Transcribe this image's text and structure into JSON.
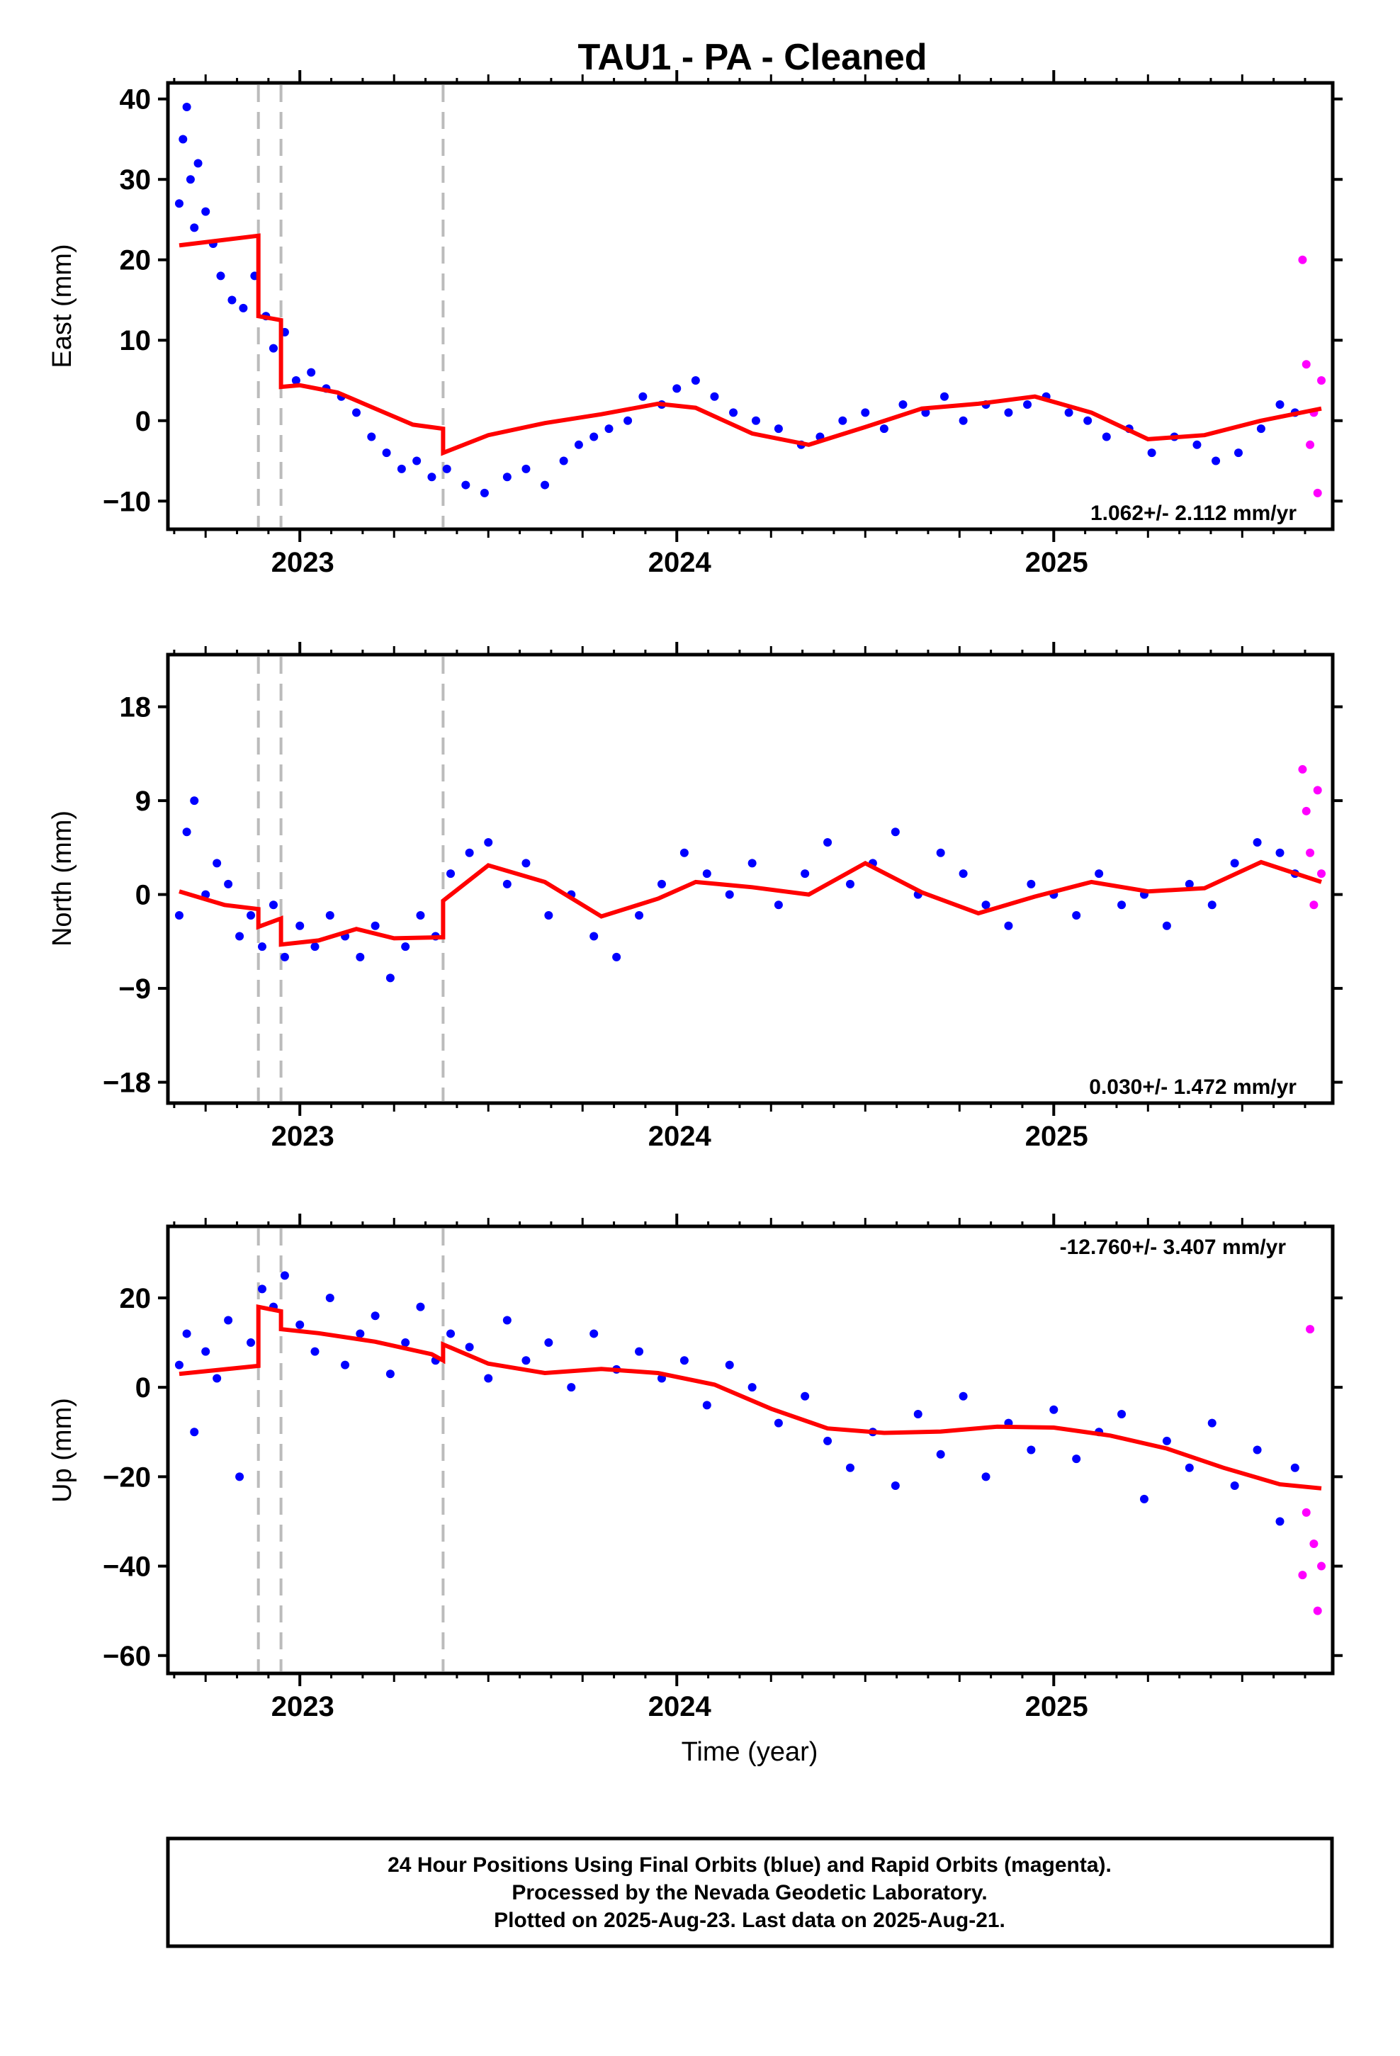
{
  "title": "TAU1  - PA - Cleaned",
  "xlabel": "Time (year)",
  "footer": [
    "24 Hour Positions Using Final Orbits (blue) and Rapid Orbits (magenta).",
    "Processed by the Nevada Geodetic Laboratory.",
    "Plotted on 2025-Aug-23. Last data on 2025-Aug-21."
  ],
  "colors": {
    "final": "#0000ff",
    "rapid": "#ff00ff",
    "model": "#ff0000",
    "offset_line": "#bbbbbb"
  },
  "chart_data": [
    {
      "type": "scatter",
      "component": "east",
      "ylabel": "East (mm)",
      "rate_text": "1.062+/- 2.112 mm/yr",
      "xlim": [
        2022.65,
        2025.74
      ],
      "ylim": [
        -13.5,
        42
      ],
      "yticks": [
        -10,
        0,
        10,
        20,
        30,
        40
      ],
      "xticks": [
        2023,
        2024,
        2025
      ],
      "offset_epochs": [
        2022.89,
        2022.95,
        2023.38
      ],
      "series": [
        {
          "kind": "final-points",
          "x": [
            2022.68,
            2022.69,
            2022.7,
            2022.71,
            2022.72,
            2022.73,
            2022.75,
            2022.77,
            2022.79,
            2022.82,
            2022.85,
            2022.88,
            2022.91,
            2022.93,
            2022.96,
            2022.99,
            2023.03,
            2023.07,
            2023.11,
            2023.15,
            2023.19,
            2023.23,
            2023.27,
            2023.31,
            2023.35,
            2023.39,
            2023.44,
            2023.49,
            2023.55,
            2023.6,
            2023.65,
            2023.7,
            2023.74,
            2023.78,
            2023.82,
            2023.87,
            2023.91,
            2023.96,
            2024.0,
            2024.05,
            2024.1,
            2024.15,
            2024.21,
            2024.27,
            2024.33,
            2024.38,
            2024.44,
            2024.5,
            2024.55,
            2024.6,
            2024.66,
            2024.71,
            2024.76,
            2024.82,
            2024.88,
            2024.93,
            2024.98,
            2025.04,
            2025.09,
            2025.14,
            2025.2,
            2025.26,
            2025.32,
            2025.38,
            2025.43,
            2025.49,
            2025.55,
            2025.6,
            2025.64
          ],
          "y": [
            27,
            35,
            39,
            30,
            24,
            32,
            26,
            22,
            18,
            15,
            14,
            18,
            13,
            9,
            11,
            5,
            6,
            4,
            3,
            1,
            -2,
            -4,
            -6,
            -5,
            -7,
            -6,
            -8,
            -9,
            -7,
            -6,
            -8,
            -5,
            -3,
            -2,
            -1,
            0,
            3,
            2,
            4,
            5,
            3,
            1,
            0,
            -1,
            -3,
            -2,
            0,
            1,
            -1,
            2,
            1,
            3,
            0,
            2,
            1,
            2,
            3,
            1,
            0,
            -2,
            -1,
            -4,
            -2,
            -3,
            -5,
            -4,
            -1,
            2,
            1
          ]
        },
        {
          "kind": "rapid-points",
          "x": [
            2025.66,
            2025.67,
            2025.68,
            2025.69,
            2025.7,
            2025.71
          ],
          "y": [
            20,
            7,
            -3,
            1,
            -9,
            5
          ]
        },
        {
          "kind": "model",
          "x": [
            2022.68,
            2022.89,
            2022.89,
            2022.95,
            2022.95,
            2023.0,
            2023.1,
            2023.2,
            2023.3,
            2023.38,
            2023.38,
            2023.5,
            2023.65,
            2023.8,
            2023.95,
            2024.05,
            2024.2,
            2024.35,
            2024.5,
            2024.65,
            2024.8,
            2024.95,
            2025.1,
            2025.25,
            2025.4,
            2025.55,
            2025.71
          ],
          "y": [
            21.8,
            23,
            13,
            12.5,
            4.2,
            4.4,
            3.5,
            1.5,
            -0.5,
            -1,
            -4,
            -1.8,
            -0.3,
            0.8,
            2.1,
            1.6,
            -1.6,
            -3,
            -0.8,
            1.5,
            2.1,
            3,
            1,
            -2.3,
            -1.8,
            0,
            1.5
          ]
        }
      ]
    },
    {
      "type": "scatter",
      "component": "north",
      "ylabel": "North (mm)",
      "rate_text": "0.030+/- 1.472 mm/yr",
      "xlim": [
        2022.65,
        2025.74
      ],
      "ylim": [
        -20,
        23
      ],
      "yticks": [
        -18,
        -9,
        0,
        9,
        18
      ],
      "xticks": [
        2023,
        2024,
        2025
      ],
      "offset_epochs": [
        2022.89,
        2022.95,
        2023.38
      ],
      "series": [
        {
          "kind": "final-points",
          "x": [
            2022.68,
            2022.7,
            2022.72,
            2022.75,
            2022.78,
            2022.81,
            2022.84,
            2022.87,
            2022.9,
            2022.93,
            2022.96,
            2023.0,
            2023.04,
            2023.08,
            2023.12,
            2023.16,
            2023.2,
            2023.24,
            2023.28,
            2023.32,
            2023.36,
            2023.4,
            2023.45,
            2023.5,
            2023.55,
            2023.6,
            2023.66,
            2023.72,
            2023.78,
            2023.84,
            2023.9,
            2023.96,
            2024.02,
            2024.08,
            2024.14,
            2024.2,
            2024.27,
            2024.34,
            2024.4,
            2024.46,
            2024.52,
            2024.58,
            2024.64,
            2024.7,
            2024.76,
            2024.82,
            2024.88,
            2024.94,
            2025.0,
            2025.06,
            2025.12,
            2025.18,
            2025.24,
            2025.3,
            2025.36,
            2025.42,
            2025.48,
            2025.54,
            2025.6,
            2025.64
          ],
          "y": [
            -2,
            6,
            9,
            0,
            3,
            1,
            -4,
            -2,
            -5,
            -1,
            -6,
            -3,
            -5,
            -2,
            -4,
            -6,
            -3,
            -8,
            -5,
            -2,
            -4,
            2,
            4,
            5,
            1,
            3,
            -2,
            0,
            -4,
            -6,
            -2,
            1,
            4,
            2,
            0,
            3,
            -1,
            2,
            5,
            1,
            3,
            6,
            0,
            4,
            2,
            -1,
            -3,
            1,
            0,
            -2,
            2,
            -1,
            0,
            -3,
            1,
            -1,
            3,
            5,
            4,
            2
          ]
        },
        {
          "kind": "rapid-points",
          "x": [
            2025.66,
            2025.67,
            2025.68,
            2025.69,
            2025.7,
            2025.71
          ],
          "y": [
            12,
            8,
            4,
            -1,
            10,
            2
          ]
        },
        {
          "kind": "model",
          "x": [
            2022.68,
            2022.8,
            2022.89,
            2022.89,
            2022.95,
            2022.95,
            2023.05,
            2023.15,
            2023.25,
            2023.38,
            2023.38,
            2023.5,
            2023.65,
            2023.8,
            2023.95,
            2024.05,
            2024.2,
            2024.35,
            2024.5,
            2024.65,
            2024.8,
            2024.95,
            2025.1,
            2025.25,
            2025.4,
            2025.55,
            2025.71
          ],
          "y": [
            0.3,
            -1,
            -1.4,
            -3.1,
            -2.3,
            -4.8,
            -4.4,
            -3.3,
            -4.2,
            -4.1,
            -0.6,
            2.8,
            1.2,
            -2.1,
            -0.4,
            1.2,
            0.7,
            0,
            3,
            0.2,
            -1.8,
            -0.2,
            1.2,
            0.3,
            0.6,
            3.1,
            1.2
          ]
        }
      ]
    },
    {
      "type": "scatter",
      "component": "up",
      "ylabel": "Up (mm)",
      "rate_text": "-12.760+/- 3.407 mm/yr",
      "xlim": [
        2022.65,
        2025.74
      ],
      "ylim": [
        -64,
        36
      ],
      "yticks": [
        -60,
        -40,
        -20,
        0,
        20
      ],
      "xticks": [
        2023,
        2024,
        2025
      ],
      "offset_epochs": [
        2022.89,
        2022.95,
        2023.38
      ],
      "series": [
        {
          "kind": "final-points",
          "x": [
            2022.68,
            2022.7,
            2022.72,
            2022.75,
            2022.78,
            2022.81,
            2022.84,
            2022.87,
            2022.9,
            2022.93,
            2022.96,
            2023.0,
            2023.04,
            2023.08,
            2023.12,
            2023.16,
            2023.2,
            2023.24,
            2023.28,
            2023.32,
            2023.36,
            2023.4,
            2023.45,
            2023.5,
            2023.55,
            2023.6,
            2023.66,
            2023.72,
            2023.78,
            2023.84,
            2023.9,
            2023.96,
            2024.02,
            2024.08,
            2024.14,
            2024.2,
            2024.27,
            2024.34,
            2024.4,
            2024.46,
            2024.52,
            2024.58,
            2024.64,
            2024.7,
            2024.76,
            2024.82,
            2024.88,
            2024.94,
            2025.0,
            2025.06,
            2025.12,
            2025.18,
            2025.24,
            2025.3,
            2025.36,
            2025.42,
            2025.48,
            2025.54,
            2025.6,
            2025.64
          ],
          "y": [
            5,
            12,
            -10,
            8,
            2,
            15,
            -20,
            10,
            22,
            18,
            25,
            14,
            8,
            20,
            5,
            12,
            16,
            3,
            10,
            18,
            6,
            12,
            9,
            2,
            15,
            6,
            10,
            0,
            12,
            4,
            8,
            2,
            6,
            -4,
            5,
            0,
            -8,
            -2,
            -12,
            -18,
            -10,
            -22,
            -6,
            -15,
            -2,
            -20,
            -8,
            -14,
            -5,
            -16,
            -10,
            -6,
            -25,
            -12,
            -18,
            -8,
            -22,
            -14,
            -30,
            -18
          ]
        },
        {
          "kind": "rapid-points",
          "x": [
            2025.66,
            2025.67,
            2025.68,
            2025.69,
            2025.7,
            2025.71
          ],
          "y": [
            -42,
            -28,
            13,
            -35,
            -50,
            -40
          ]
        },
        {
          "kind": "model",
          "x": [
            2022.68,
            2022.89,
            2022.89,
            2022.95,
            2022.95,
            2023.05,
            2023.2,
            2023.35,
            2023.38,
            2023.38,
            2023.5,
            2023.65,
            2023.8,
            2023.95,
            2024.1,
            2024.25,
            2024.4,
            2024.55,
            2024.7,
            2024.85,
            2025.0,
            2025.15,
            2025.3,
            2025.45,
            2025.6,
            2025.71
          ],
          "y": [
            3,
            4.8,
            18,
            17,
            13,
            12.1,
            10.2,
            7.4,
            6,
            9.6,
            5.3,
            3.2,
            4.1,
            3.2,
            0.6,
            -4.8,
            -9.2,
            -10.2,
            -9.9,
            -8.8,
            -9,
            -10.8,
            -13.7,
            -18,
            -21.7,
            -22.6
          ]
        }
      ]
    }
  ]
}
